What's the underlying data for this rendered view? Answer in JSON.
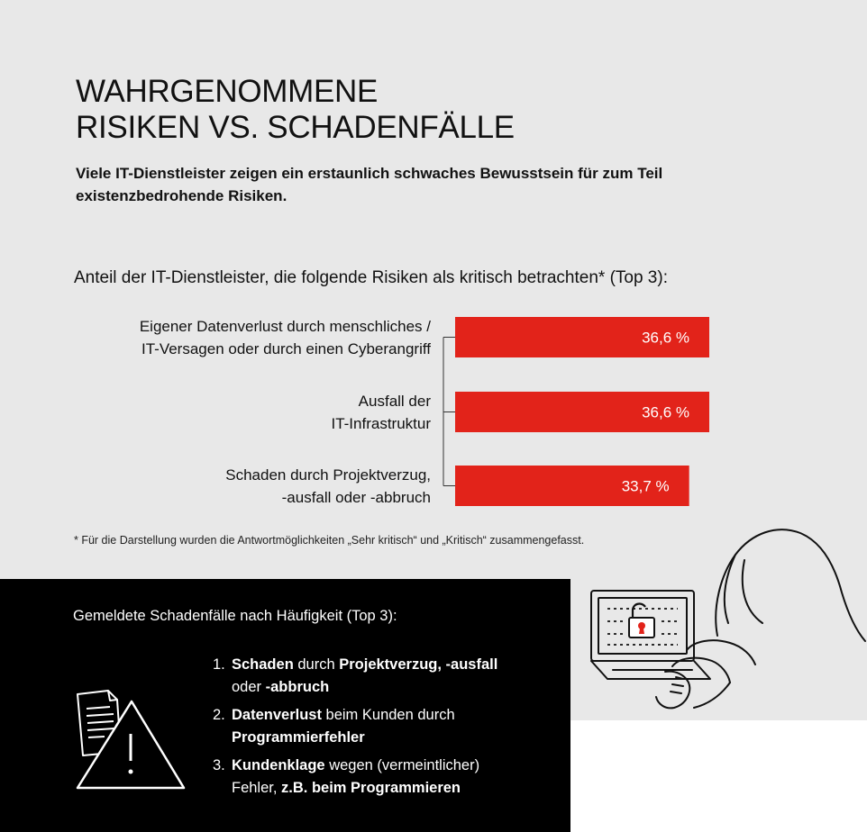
{
  "title_line1": "WAHRGENOMMENE",
  "title_line2": "RISIKEN VS. SCHADENFÄLLE",
  "subtitle": "Viele IT-Dienstleister zeigen ein erstaunlich schwaches Bewusstsein für zum Teil existenzbedrohende Risiken.",
  "chart_heading": "Anteil der IT-Dienstleister, die folgende Risiken als kritisch betrachten* (Top 3):",
  "chart_data": {
    "type": "bar",
    "orientation": "horizontal",
    "categories": [
      [
        "Eigener Datenverlust durch menschliches /",
        "IT-Versagen oder durch einen Cyberangriff"
      ],
      [
        "Ausfall der",
        "IT-Infrastruktur"
      ],
      [
        "Schaden durch Projektverzug,",
        "-ausfall oder -abbruch"
      ]
    ],
    "values": [
      36.6,
      36.6,
      33.7
    ],
    "value_labels": [
      "36,6 %",
      "36,6 %",
      "33,7 %"
    ],
    "bar_color": "#e2231a",
    "value_label_color": "#ffffff",
    "grid": false
  },
  "footnote": "* Für die Darstellung wurden die Antwortmöglichkeiten „Sehr kritisch“ und „Kritisch“ zusammengefasst.",
  "incidents": {
    "heading": "Gemeldete Schadenfälle nach Häufigkeit (Top 3):",
    "items": [
      {
        "number": "1.",
        "line1": [
          {
            "text": "Schaden",
            "bold": true
          },
          {
            "text": " durch ",
            "bold": false
          },
          {
            "text": "Projektverzug, -ausfall",
            "bold": true
          }
        ],
        "line2": [
          {
            "text": "oder ",
            "bold": false
          },
          {
            "text": "-abbruch",
            "bold": true
          }
        ]
      },
      {
        "number": "2.",
        "line1": [
          {
            "text": "Datenverlust",
            "bold": true
          },
          {
            "text": " beim Kunden durch",
            "bold": false
          }
        ],
        "line2": [
          {
            "text": "Programmierfehler",
            "bold": true
          }
        ]
      },
      {
        "number": "3.",
        "line1": [
          {
            "text": "Kundenklage",
            "bold": true
          },
          {
            "text": " wegen (vermeintlicher)",
            "bold": false
          }
        ],
        "line2": [
          {
            "text": "Fehler, ",
            "bold": false
          },
          {
            "text": "z.B. beim Programmieren",
            "bold": true
          }
        ]
      }
    ]
  },
  "icons": {
    "warning": "document-warning-icon",
    "hacker": "hacker-laptop-illustration"
  },
  "colors": {
    "background": "#e8e8e8",
    "accent": "#e2231a",
    "panel": "#000000"
  }
}
